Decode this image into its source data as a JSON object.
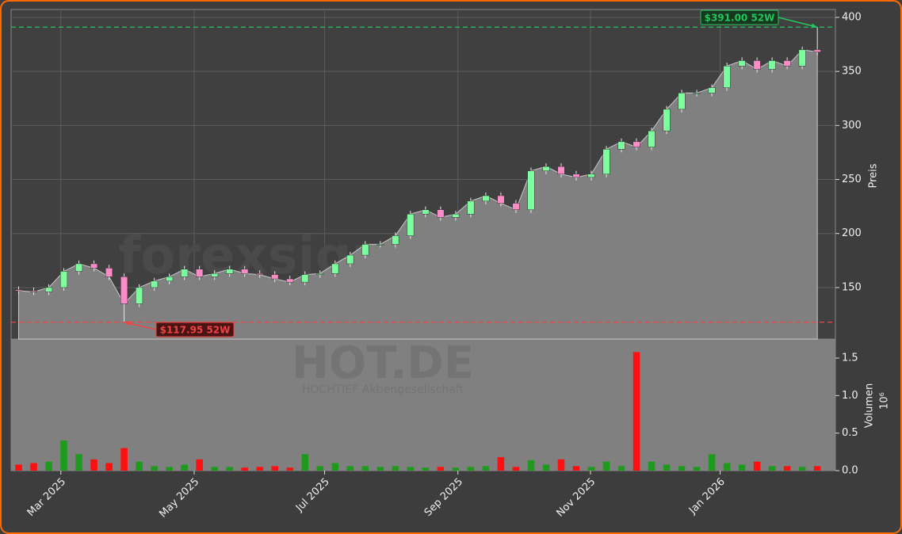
{
  "chart_data": {
    "type": "candlestick",
    "watermark": "forexsignale.trade",
    "symbol": "HOT.DE",
    "company": "HOCHTIEF Aktiengesellschaft",
    "ylabel": "Preis",
    "y2label": "Volumen",
    "y2_scale_label": "10⁶",
    "grid": true,
    "xlim": [
      -0.5,
      54.2
    ],
    "xticks": [
      {
        "value": 2.8,
        "label": "Mar 2025"
      },
      {
        "value": 11.65,
        "label": "May 2025"
      },
      {
        "value": 20.3,
        "label": "Jul 2025"
      },
      {
        "value": 29.15,
        "label": "Sep 2025"
      },
      {
        "value": 37.95,
        "label": "Nov 2025"
      },
      {
        "value": 46.55,
        "label": "Jan 2026"
      }
    ],
    "ylim": [
      102.3,
      407.3
    ],
    "yticks": [
      150,
      200,
      250,
      300,
      350,
      400
    ],
    "y2lim": [
      0,
      1.753
    ],
    "y2ticks": [
      {
        "value": 0,
        "label": "0.0"
      },
      0.5,
      {
        "value": 1,
        "label": "1.0"
      },
      1.5
    ],
    "colors": {
      "up": "#7dffa0",
      "down": "#ff8cc8",
      "area": "#808080",
      "volume_up": "#1f9a1f",
      "volume_down": "#ff1010"
    },
    "open": [
      148,
      147,
      146,
      150,
      165,
      172,
      168,
      160,
      135,
      150,
      156,
      160,
      167,
      160,
      163,
      167,
      163,
      162,
      158,
      155,
      162,
      163,
      172,
      180,
      190,
      190,
      198,
      218,
      222,
      215,
      218,
      230,
      235,
      228,
      222,
      258,
      262,
      255,
      252,
      255,
      278,
      285,
      280,
      295,
      315,
      330,
      330,
      335,
      355,
      360,
      352,
      360,
      355,
      370
    ],
    "high": [
      151,
      150,
      153,
      168,
      175,
      175,
      171,
      163,
      153,
      159,
      163,
      170,
      170,
      166,
      170,
      170,
      166,
      165,
      161,
      165,
      166,
      175,
      183,
      193,
      193,
      201,
      221,
      225,
      225,
      221,
      233,
      238,
      238,
      231,
      261,
      265,
      265,
      258,
      258,
      281,
      288,
      288,
      298,
      318,
      333,
      333,
      338,
      358,
      363,
      363,
      363,
      363,
      373,
      391
    ],
    "low": [
      144,
      143,
      143,
      147,
      162,
      165,
      157,
      117.95,
      132,
      147,
      153,
      157,
      157,
      157,
      160,
      160,
      159,
      155,
      152,
      152,
      159,
      160,
      169,
      177,
      187,
      187,
      195,
      215,
      212,
      212,
      215,
      227,
      225,
      219,
      219,
      255,
      252,
      249,
      249,
      252,
      275,
      277,
      277,
      292,
      312,
      327,
      327,
      332,
      352,
      349,
      349,
      352,
      352,
      365
    ],
    "close": [
      147,
      146,
      150,
      165,
      172,
      168,
      160,
      135,
      150,
      156,
      160,
      167,
      160,
      163,
      167,
      163,
      162,
      158,
      155,
      162,
      163,
      172,
      180,
      190,
      190,
      198,
      218,
      222,
      215,
      218,
      230,
      235,
      228,
      222,
      258,
      262,
      255,
      252,
      255,
      278,
      285,
      280,
      295,
      315,
      330,
      330,
      335,
      355,
      360,
      352,
      360,
      355,
      370,
      368
    ],
    "volume": [
      0.08,
      0.1,
      0.12,
      0.4,
      0.22,
      0.15,
      0.1,
      0.3,
      0.12,
      0.06,
      0.05,
      0.08,
      0.15,
      0.05,
      0.05,
      0.04,
      0.05,
      0.06,
      0.04,
      0.22,
      0.06,
      0.1,
      0.06,
      0.06,
      0.05,
      0.06,
      0.05,
      0.04,
      0.05,
      0.04,
      0.05,
      0.06,
      0.18,
      0.05,
      0.14,
      0.08,
      0.15,
      0.06,
      0.05,
      0.12,
      0.06,
      1.58,
      0.12,
      0.08,
      0.06,
      0.05,
      0.22,
      0.1,
      0.08,
      0.12,
      0.06,
      0.06,
      0.05,
      0.06
    ],
    "annotations": [
      {
        "text": "$391.00 52W",
        "value": 391,
        "color": "#22c55e"
      },
      {
        "text": "$117.95 52W",
        "value": 117.95,
        "color": "#ef4444"
      }
    ]
  }
}
